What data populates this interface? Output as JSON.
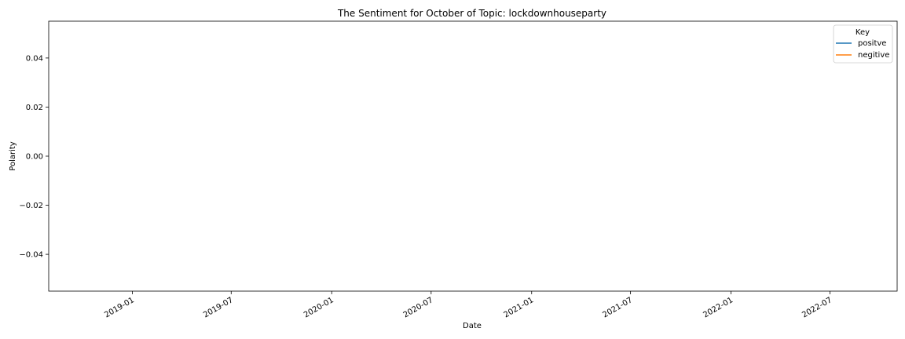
{
  "chart_data": {
    "type": "line",
    "title": "The Sentiment for October of Topic: lockdownhouseparty",
    "xlabel": "Date",
    "ylabel": "Polarity",
    "x_axis_type": "date",
    "xlim": [
      "2018-08-01",
      "2022-11-01"
    ],
    "ylim": [
      -0.055,
      0.055
    ],
    "x_ticks": [
      "2019-01",
      "2019-07",
      "2020-01",
      "2020-07",
      "2021-01",
      "2021-07",
      "2022-01",
      "2022-07"
    ],
    "y_ticks": [
      0.04,
      0.02,
      0.0,
      -0.02,
      -0.04
    ],
    "y_tick_labels": [
      "0.04",
      "0.02",
      "0.00",
      "−0.02",
      "−0.04"
    ],
    "grid": false,
    "legend": {
      "title": "Key",
      "position": "top-right",
      "entries": [
        {
          "name": "positve",
          "color": "#1f77b4"
        },
        {
          "name": "negitive",
          "color": "#ff7f0e"
        }
      ]
    },
    "series": [
      {
        "name": "positve",
        "color": "#1f77b4",
        "x": [],
        "values": []
      },
      {
        "name": "negitive",
        "color": "#ff7f0e",
        "x": [],
        "values": []
      }
    ]
  }
}
